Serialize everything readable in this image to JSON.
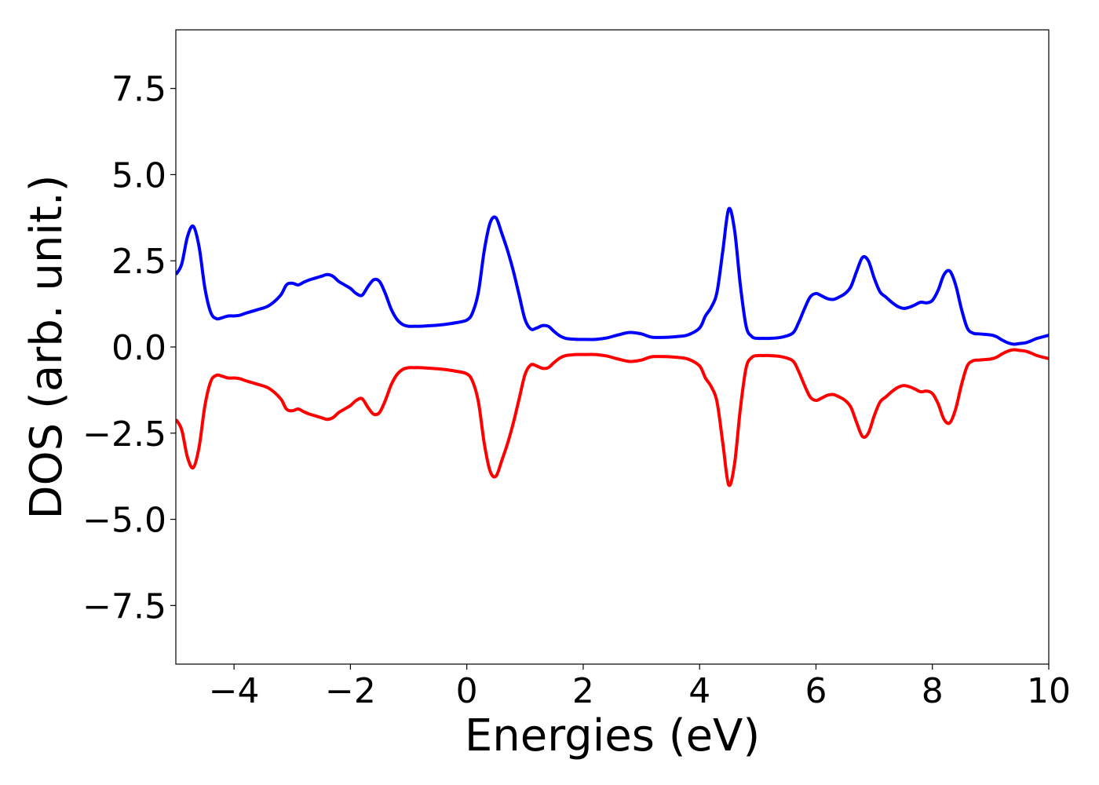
{
  "chart_data": {
    "type": "line",
    "title": "",
    "xlabel": "Energies (eV)",
    "ylabel": "DOS (arb. unit.)",
    "xlim": [
      -5,
      10
    ],
    "ylim": [
      -9.2,
      9.2
    ],
    "xticks": [
      -4,
      -2,
      0,
      2,
      4,
      6,
      8,
      10
    ],
    "xtick_labels": [
      "−4",
      "−2",
      "0",
      "2",
      "4",
      "6",
      "8",
      "10"
    ],
    "yticks": [
      -7.5,
      -5.0,
      -2.5,
      0.0,
      2.5,
      5.0,
      7.5
    ],
    "ytick_labels": [
      "−7.5",
      "−5.0",
      "−2.5",
      "0.0",
      "2.5",
      "5.0",
      "7.5"
    ],
    "grid": false,
    "series": [
      {
        "color": "#0000ff",
        "x": [
          -5.0,
          -4.9,
          -4.8,
          -4.7,
          -4.6,
          -4.5,
          -4.4,
          -4.3,
          -4.2,
          -4.1,
          -4.0,
          -3.9,
          -3.8,
          -3.6,
          -3.4,
          -3.2,
          -3.1,
          -3.0,
          -2.9,
          -2.8,
          -2.7,
          -2.6,
          -2.5,
          -2.4,
          -2.3,
          -2.2,
          -2.1,
          -2.0,
          -1.9,
          -1.8,
          -1.7,
          -1.6,
          -1.5,
          -1.4,
          -1.3,
          -1.2,
          -1.1,
          -1.0,
          -0.9,
          -0.8,
          -0.6,
          -0.4,
          -0.2,
          0.0,
          0.1,
          0.2,
          0.3,
          0.4,
          0.5,
          0.6,
          0.7,
          0.8,
          0.9,
          1.0,
          1.1,
          1.2,
          1.3,
          1.4,
          1.5,
          1.6,
          1.7,
          1.8,
          1.9,
          2.0,
          2.2,
          2.4,
          2.6,
          2.8,
          3.0,
          3.1,
          3.2,
          3.4,
          3.6,
          3.8,
          4.0,
          4.1,
          4.2,
          4.3,
          4.4,
          4.5,
          4.6,
          4.7,
          4.8,
          4.9,
          5.0,
          5.1,
          5.2,
          5.4,
          5.6,
          5.7,
          5.8,
          5.9,
          6.0,
          6.1,
          6.2,
          6.3,
          6.4,
          6.5,
          6.6,
          6.7,
          6.8,
          6.9,
          7.0,
          7.1,
          7.2,
          7.3,
          7.4,
          7.5,
          7.6,
          7.7,
          7.8,
          7.9,
          8.0,
          8.1,
          8.2,
          8.3,
          8.4,
          8.5,
          8.6,
          8.7,
          8.8,
          9.0,
          9.1,
          9.2,
          9.3,
          9.4,
          9.5,
          9.6,
          9.7,
          9.8,
          10.0
        ],
        "values": [
          2.1,
          2.4,
          3.2,
          3.5,
          2.9,
          1.7,
          1.0,
          0.82,
          0.85,
          0.9,
          0.9,
          0.92,
          0.98,
          1.08,
          1.2,
          1.5,
          1.8,
          1.85,
          1.8,
          1.88,
          1.95,
          2.0,
          2.05,
          2.1,
          2.05,
          1.9,
          1.8,
          1.7,
          1.55,
          1.5,
          1.75,
          1.95,
          1.9,
          1.55,
          1.1,
          0.8,
          0.65,
          0.6,
          0.6,
          0.6,
          0.62,
          0.65,
          0.7,
          0.78,
          1.0,
          1.6,
          2.8,
          3.6,
          3.75,
          3.3,
          2.8,
          2.2,
          1.5,
          0.8,
          0.52,
          0.55,
          0.62,
          0.6,
          0.45,
          0.32,
          0.25,
          0.23,
          0.22,
          0.22,
          0.22,
          0.26,
          0.35,
          0.42,
          0.38,
          0.32,
          0.28,
          0.28,
          0.3,
          0.35,
          0.55,
          0.9,
          1.15,
          1.6,
          2.8,
          4.0,
          3.4,
          1.8,
          0.6,
          0.3,
          0.25,
          0.25,
          0.25,
          0.28,
          0.4,
          0.7,
          1.1,
          1.45,
          1.55,
          1.48,
          1.4,
          1.38,
          1.45,
          1.55,
          1.75,
          2.2,
          2.6,
          2.5,
          2.0,
          1.6,
          1.45,
          1.3,
          1.18,
          1.12,
          1.15,
          1.22,
          1.3,
          1.28,
          1.35,
          1.65,
          2.1,
          2.2,
          1.8,
          1.1,
          0.55,
          0.4,
          0.38,
          0.35,
          0.3,
          0.2,
          0.12,
          0.08,
          0.1,
          0.12,
          0.18,
          0.25,
          0.34
        ]
      },
      {
        "color": "#ff0000",
        "x": [
          -5.0,
          -4.9,
          -4.8,
          -4.7,
          -4.6,
          -4.5,
          -4.4,
          -4.3,
          -4.2,
          -4.1,
          -4.0,
          -3.9,
          -3.8,
          -3.6,
          -3.4,
          -3.2,
          -3.1,
          -3.0,
          -2.9,
          -2.8,
          -2.7,
          -2.6,
          -2.5,
          -2.4,
          -2.3,
          -2.2,
          -2.1,
          -2.0,
          -1.9,
          -1.8,
          -1.7,
          -1.6,
          -1.5,
          -1.4,
          -1.3,
          -1.2,
          -1.1,
          -1.0,
          -0.9,
          -0.8,
          -0.6,
          -0.4,
          -0.2,
          0.0,
          0.1,
          0.2,
          0.3,
          0.4,
          0.5,
          0.6,
          0.7,
          0.8,
          0.9,
          1.0,
          1.1,
          1.2,
          1.3,
          1.4,
          1.5,
          1.6,
          1.7,
          1.8,
          1.9,
          2.0,
          2.2,
          2.4,
          2.6,
          2.8,
          3.0,
          3.1,
          3.2,
          3.4,
          3.6,
          3.8,
          4.0,
          4.1,
          4.2,
          4.3,
          4.4,
          4.5,
          4.6,
          4.7,
          4.8,
          4.9,
          5.0,
          5.1,
          5.2,
          5.4,
          5.6,
          5.7,
          5.8,
          5.9,
          6.0,
          6.1,
          6.2,
          6.3,
          6.4,
          6.5,
          6.6,
          6.7,
          6.8,
          6.9,
          7.0,
          7.1,
          7.2,
          7.3,
          7.4,
          7.5,
          7.6,
          7.7,
          7.8,
          7.9,
          8.0,
          8.1,
          8.2,
          8.3,
          8.4,
          8.5,
          8.6,
          8.7,
          8.8,
          9.0,
          9.1,
          9.2,
          9.3,
          9.4,
          9.5,
          9.6,
          9.7,
          9.8,
          10.0
        ],
        "values": [
          -2.1,
          -2.4,
          -3.2,
          -3.5,
          -2.9,
          -1.7,
          -1.0,
          -0.82,
          -0.85,
          -0.9,
          -0.9,
          -0.92,
          -0.98,
          -1.08,
          -1.2,
          -1.5,
          -1.8,
          -1.85,
          -1.8,
          -1.88,
          -1.95,
          -2.0,
          -2.05,
          -2.1,
          -2.05,
          -1.9,
          -1.8,
          -1.7,
          -1.55,
          -1.5,
          -1.75,
          -1.95,
          -1.9,
          -1.55,
          -1.1,
          -0.8,
          -0.65,
          -0.6,
          -0.6,
          -0.6,
          -0.62,
          -0.65,
          -0.7,
          -0.78,
          -1.0,
          -1.6,
          -2.8,
          -3.6,
          -3.75,
          -3.3,
          -2.8,
          -2.2,
          -1.5,
          -0.8,
          -0.52,
          -0.55,
          -0.62,
          -0.6,
          -0.45,
          -0.32,
          -0.25,
          -0.23,
          -0.22,
          -0.22,
          -0.22,
          -0.26,
          -0.35,
          -0.42,
          -0.38,
          -0.32,
          -0.28,
          -0.28,
          -0.3,
          -0.35,
          -0.55,
          -0.9,
          -1.15,
          -1.6,
          -2.8,
          -4.0,
          -3.4,
          -1.8,
          -0.6,
          -0.3,
          -0.25,
          -0.25,
          -0.25,
          -0.28,
          -0.4,
          -0.7,
          -1.1,
          -1.45,
          -1.55,
          -1.48,
          -1.4,
          -1.38,
          -1.45,
          -1.55,
          -1.75,
          -2.2,
          -2.6,
          -2.5,
          -2.0,
          -1.6,
          -1.45,
          -1.3,
          -1.18,
          -1.12,
          -1.15,
          -1.22,
          -1.3,
          -1.28,
          -1.35,
          -1.65,
          -2.1,
          -2.2,
          -1.8,
          -1.1,
          -0.55,
          -0.4,
          -0.38,
          -0.35,
          -0.3,
          -0.2,
          -0.12,
          -0.08,
          -0.1,
          -0.12,
          -0.18,
          -0.25,
          -0.34
        ]
      }
    ]
  }
}
